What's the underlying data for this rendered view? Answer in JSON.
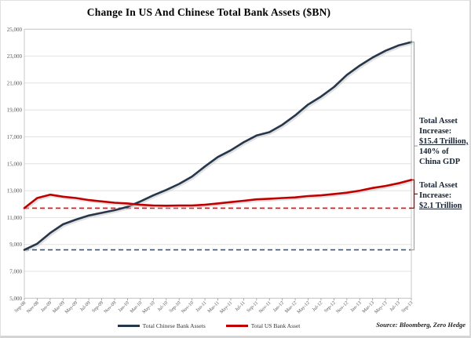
{
  "title": "Change In US And Chinese Total Bank Assets ($BN)",
  "source": "Source: Bloomberg, Zero Hedge",
  "colors": {
    "china_line": "#26374b",
    "us_line": "#c00000",
    "china_dashed": "#44546a",
    "us_dashed": "#ff0000",
    "china_bracket": "#a6a6a6",
    "us_bracket": "#c00000",
    "grid": "#e2e2e2",
    "plot_border": "#c9c9c9",
    "tick_text": "#595959",
    "shadow": "#c8c8c8"
  },
  "legend": [
    {
      "label": "Total Chinese Bank Assets",
      "color": "#26374b"
    },
    {
      "label": "Total US Bank Asset",
      "color": "#c00000"
    }
  ],
  "annotations": {
    "china": {
      "lines": [
        {
          "text": "Total Asset",
          "underline": false
        },
        {
          "text": "Increase:",
          "underline": false
        },
        {
          "text": "$15.4 Trillion,",
          "underline": true
        },
        {
          "text": "140% of",
          "underline": false
        },
        {
          "text": "China GDP",
          "underline": false
        }
      ]
    },
    "us": {
      "lines": [
        {
          "text": "Total Asset",
          "underline": false
        },
        {
          "text": "Increase:",
          "underline": false
        },
        {
          "text": "$2.1 Trillion",
          "underline": true
        }
      ]
    }
  },
  "chart_data": {
    "type": "line",
    "title": "Change In US And Chinese Total Bank Assets ($BN)",
    "xlabel": "",
    "ylabel": "",
    "grid": true,
    "legend_position": "bottom",
    "ylim": [
      5000,
      25000
    ],
    "ytick_step": 2000,
    "ytick_labels": [
      "5,000",
      "7,000",
      "9,000",
      "11,000",
      "13,000",
      "15,000",
      "17,000",
      "19,000",
      "21,000",
      "23,000",
      "25,000"
    ],
    "categories": [
      "Sep-08",
      "Nov-08",
      "Jan-09",
      "Mar-09",
      "May-09",
      "Jul-09",
      "Sep-09",
      "Nov-09",
      "Jan-10",
      "Mar-10",
      "May-10",
      "Jul-10",
      "Sep-10",
      "Nov-10",
      "Jan-11",
      "Mar-11",
      "May-11",
      "Jul-11",
      "Sep-11",
      "Nov-11",
      "Jan-12",
      "Mar-12",
      "May-12",
      "Jul-12",
      "Sep-12",
      "Nov-12",
      "Jan-13",
      "Mar-13",
      "May-13",
      "Jul-13",
      "Sep-13"
    ],
    "series": [
      {
        "name": "Total Chinese Bank Assets",
        "color": "#26374b",
        "values": [
          8600,
          9050,
          9850,
          10500,
          10850,
          11150,
          11350,
          11550,
          11800,
          12200,
          12650,
          13050,
          13500,
          14050,
          14800,
          15500,
          16000,
          16600,
          17100,
          17350,
          17900,
          18600,
          19400,
          20000,
          20700,
          21600,
          22300,
          22900,
          23400,
          23800,
          24050
        ]
      },
      {
        "name": "Total US Bank Asset",
        "color": "#c00000",
        "values": [
          11700,
          12450,
          12700,
          12550,
          12450,
          12300,
          12200,
          12100,
          12050,
          11950,
          11900,
          11880,
          11900,
          11900,
          11950,
          12050,
          12150,
          12250,
          12350,
          12400,
          12450,
          12500,
          12600,
          12650,
          12750,
          12850,
          13000,
          13200,
          13350,
          13550,
          13800
        ]
      }
    ],
    "reference_lines": [
      {
        "value": 8600,
        "color": "#44546a",
        "style": "dashed"
      },
      {
        "value": 11700,
        "color": "#ff0000",
        "style": "dashed"
      }
    ],
    "brackets": [
      {
        "series_index": 0,
        "baseline": 8600,
        "color": "#a6a6a6"
      },
      {
        "series_index": 1,
        "baseline": 11700,
        "color": "#c00000"
      }
    ]
  }
}
